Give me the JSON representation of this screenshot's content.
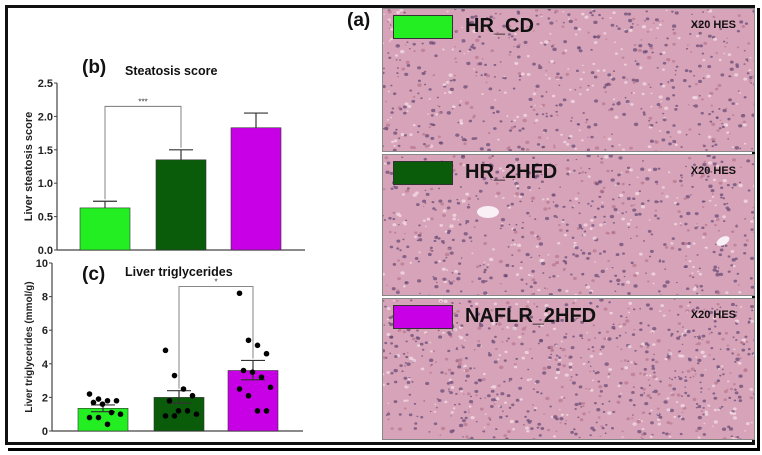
{
  "figure": {
    "panel_a": {
      "letter": "(a)",
      "images": [
        {
          "group": "HR_CD",
          "magnification": "X20 HES",
          "color": "#22ee22"
        },
        {
          "group": "HR_2HFD",
          "magnification": "X20 HES",
          "color": "#0a5c0a"
        },
        {
          "group": "NAFLR_2HFD",
          "magnification": "X20 HES",
          "color": "#c800e6"
        }
      ]
    },
    "panel_b": {
      "letter": "(b)",
      "title": "Steatosis score"
    },
    "panel_c": {
      "letter": "(c)",
      "title": "Liver triglycerides"
    }
  },
  "chart_data": [
    {
      "type": "bar",
      "title": "Steatosis score",
      "panel": "(b)",
      "categories": [
        "HR_CD",
        "HR_2HFD",
        "NAFLR_2HFD"
      ],
      "colors": [
        "#22ee22",
        "#0a5c0a",
        "#c800e6"
      ],
      "values": [
        0.63,
        1.35,
        1.83
      ],
      "error_upper": [
        0.73,
        1.5,
        2.05
      ],
      "xlabel": "",
      "ylabel": "Liver steatosis score",
      "ylim": [
        0,
        2.5
      ],
      "yticks": [
        "0.0",
        "0.5",
        "1.0",
        "1.5",
        "2.0",
        "2.5"
      ],
      "annotations": [
        {
          "between": [
            "HR_CD",
            "HR_2HFD"
          ],
          "label": "***",
          "y": 2.15
        }
      ],
      "grid": false
    },
    {
      "type": "bar",
      "title": "Liver triglycerides",
      "panel": "(c)",
      "categories": [
        "HR_CD",
        "HR_2HFD",
        "NAFLR_2HFD"
      ],
      "colors": [
        "#22ee22",
        "#0a5c0a",
        "#c800e6"
      ],
      "values": [
        1.35,
        2.0,
        3.6
      ],
      "error_lower": [
        1.15,
        1.65,
        3.05
      ],
      "error_upper": [
        1.55,
        2.4,
        4.2
      ],
      "points": [
        [
          2.2,
          1.9,
          1.8,
          1.8,
          1.7,
          1.6,
          1.1,
          1.0,
          0.8,
          0.8,
          0.4
        ],
        [
          4.8,
          3.3,
          2.5,
          2.1,
          1.8,
          1.2,
          1.2,
          1.0,
          0.9,
          0.9
        ],
        [
          8.2,
          5.4,
          5.1,
          4.6,
          3.6,
          3.5,
          3.2,
          2.6,
          2.5,
          2.1,
          1.2,
          1.2
        ]
      ],
      "xlabel": "",
      "ylabel": "Liver triglycerides (mmol/g)",
      "ylim": [
        0,
        10
      ],
      "yticks": [
        "0",
        "2",
        "4",
        "6",
        "8",
        "10"
      ],
      "annotations": [
        {
          "between": [
            "HR_2HFD",
            "NAFLR_2HFD"
          ],
          "label": "*",
          "y": 8.6
        }
      ],
      "grid": false
    }
  ]
}
